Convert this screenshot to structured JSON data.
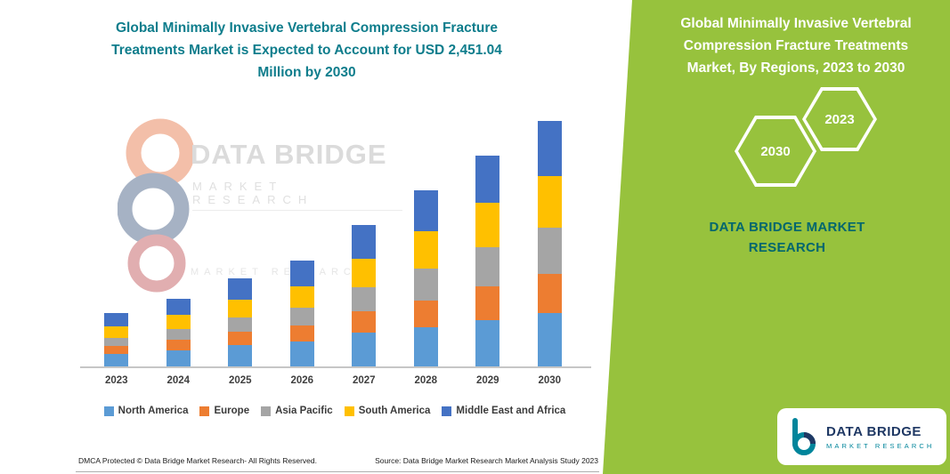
{
  "left": {
    "title_lines": [
      "Global Minimally Invasive Vertebral Compression Fracture",
      "Treatments Market is Expected to Account for USD 2,451.04",
      "Million by 2030"
    ],
    "footer_left": "DMCA Protected © Data Bridge Market Research-  All Rights Reserved.",
    "footer_right": "Source: Data Bridge Market Research  Market Analysis Study 2023",
    "watermark": {
      "name": "DATA BRIDGE",
      "subtitle": "MARKET RESEARCH",
      "subtitle2": "MARKET RESEARCH"
    }
  },
  "right": {
    "title_lines": [
      "Global Minimally Invasive Vertebral",
      "Compression Fracture Treatments",
      "Market, By Regions, 2023 to 2030"
    ],
    "hex_back_label": "2030",
    "hex_front_label": "2023",
    "brand_line1": "DATA BRIDGE MARKET",
    "brand_line2": "RESEARCH",
    "panel_color": "#97C23D",
    "brand_text_color": "#00666E"
  },
  "logo_card": {
    "name": "DATA BRIDGE",
    "subtitle": "MARKET  RESEARCH"
  },
  "chart_data": {
    "type": "bar",
    "stacked": true,
    "title": "Global Minimally Invasive Vertebral Compression Fracture Treatments Market is Expected to Account for USD 2,451.04 Million by 2030",
    "unit": "USD Million",
    "categories": [
      "2023",
      "2024",
      "2025",
      "2026",
      "2027",
      "2028",
      "2029",
      "2030"
    ],
    "series": [
      {
        "name": "North America",
        "color": "#5B9BD5",
        "values": [
          124,
          160,
          213,
          249,
          337,
          391,
          462,
          533
        ]
      },
      {
        "name": "Europe",
        "color": "#ED7D31",
        "values": [
          80,
          107,
          133,
          160,
          213,
          266,
          337,
          391
        ]
      },
      {
        "name": "Asia Pacific",
        "color": "#A5A5A5",
        "values": [
          80,
          107,
          142,
          178,
          240,
          320,
          391,
          462
        ]
      },
      {
        "name": "South America",
        "color": "#FFC000",
        "values": [
          115,
          142,
          178,
          213,
          284,
          373,
          444,
          515
        ]
      },
      {
        "name": "Middle East and Africa",
        "color": "#4472C4",
        "values": [
          133,
          160,
          213,
          258,
          337,
          409,
          471,
          550.04
        ]
      }
    ],
    "totals_estimated": [
      532,
      676,
      879,
      1058,
      1411,
      1759,
      2105,
      2451.04
    ],
    "ylim": [
      0,
      2500
    ],
    "grid": false,
    "legend_position": "bottom",
    "annotation": "2030 total = USD 2,451.04 Million"
  }
}
